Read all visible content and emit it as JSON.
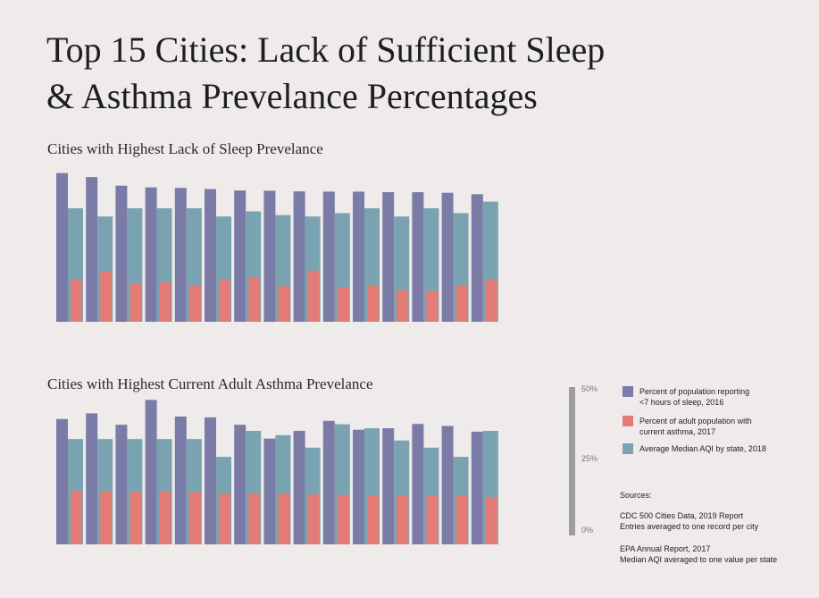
{
  "title": {
    "line1": "Top 15 Cities: Lack of Sufficient Sleep",
    "line2": "& Asthma Prevelance Percentages"
  },
  "scale": {
    "ticks": [
      "50%",
      "25%",
      "0%"
    ]
  },
  "legend": [
    {
      "label_line1": "Percent of population reporting",
      "label_line2": "<7 hours of sleep, 2016",
      "color": "#7a7ba6"
    },
    {
      "label_line1": "Percent of adult population with",
      "label_line2": "current asthma, 2017",
      "color": "#e57b77"
    },
    {
      "label_line1": "Average Median AQI by state, 2018",
      "label_line2": "",
      "color": "#7aa3b1"
    }
  ],
  "sources": {
    "heading": "Sources:",
    "cdc_line1": "CDC 500 Cities Data, 2019 Report",
    "cdc_line2": "Entries averaged to one record per city",
    "epa_line1": "EPA Annual Report, 2017",
    "epa_line2": "Median AQI averaged to one value per state"
  },
  "chart_data": [
    {
      "type": "bar",
      "title": "Cities with Highest Lack of Sleep Prevelance",
      "ylim": [
        0,
        50
      ],
      "series": [
        {
          "name": "Percent of population reporting <7 hours of sleep, 2016",
          "color": "#7a7ba6",
          "values": [
            52.0,
            50.6,
            47.6,
            47.0,
            46.8,
            46.4,
            45.9,
            45.8,
            45.6,
            45.5,
            45.5,
            45.3,
            45.3,
            45.1,
            44.6
          ]
        },
        {
          "name": "Percent of adult population with current asthma, 2017",
          "color": "#e57b77",
          "values": [
            14.6,
            17.8,
            13.4,
            13.8,
            12.8,
            14.6,
            15.4,
            12.4,
            17.9,
            12.2,
            12.8,
            11.0,
            10.8,
            12.7,
            14.6
          ]
        },
        {
          "name": "Average Median AQI by state, 2018",
          "color": "#7aa3b1",
          "values": [
            39.7,
            36.8,
            39.7,
            39.7,
            39.7,
            36.8,
            38.6,
            37.3,
            36.8,
            38.0,
            39.7,
            36.8,
            39.7,
            38.0,
            42.0
          ]
        }
      ]
    },
    {
      "type": "bar",
      "title": "Cities with Highest Current Adult Asthma Prevelance",
      "ylim": [
        0,
        50
      ],
      "series": [
        {
          "name": "Percent of population reporting <7 hours of sleep, 2016",
          "color": "#7a7ba6",
          "values": [
            43.8,
            45.8,
            41.8,
            50.5,
            44.7,
            44.4,
            41.8,
            37.0,
            39.7,
            43.2,
            40.1,
            40.6,
            42.1,
            41.4,
            39.4
          ]
        },
        {
          "name": "Percent of adult population with current asthma, 2017",
          "color": "#e57b77",
          "values": [
            18.7,
            18.4,
            18.4,
            18.4,
            18.3,
            17.8,
            17.8,
            17.7,
            17.4,
            17.3,
            17.1,
            17.1,
            16.9,
            16.9,
            16.6
          ]
        },
        {
          "name": "Average Median AQI by state, 2018",
          "color": "#7aa3b1",
          "values": [
            36.8,
            36.8,
            36.8,
            36.8,
            36.8,
            30.6,
            39.7,
            38.2,
            33.8,
            42.0,
            40.6,
            36.3,
            33.8,
            30.6,
            39.7
          ]
        }
      ]
    }
  ]
}
